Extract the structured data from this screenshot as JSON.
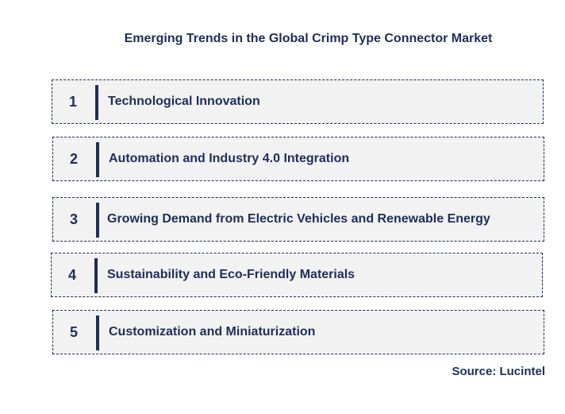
{
  "title": "Emerging Trends in the Global Crimp Type Connector Market",
  "trends": [
    {
      "number": "1",
      "label": "Technological Innovation"
    },
    {
      "number": "2",
      "label": "Automation and Industry 4.0 Integration"
    },
    {
      "number": "3",
      "label": "Growing Demand from Electric Vehicles and Renewable Energy"
    },
    {
      "number": "4",
      "label": "Sustainability and Eco-Friendly Materials"
    },
    {
      "number": "5",
      "label": "Customization and Miniaturization"
    }
  ],
  "source": "Source: Lucintel",
  "colors": {
    "text": "#1f2d5a",
    "box_fill": "#f2f2f2",
    "background": "#ffffff"
  }
}
